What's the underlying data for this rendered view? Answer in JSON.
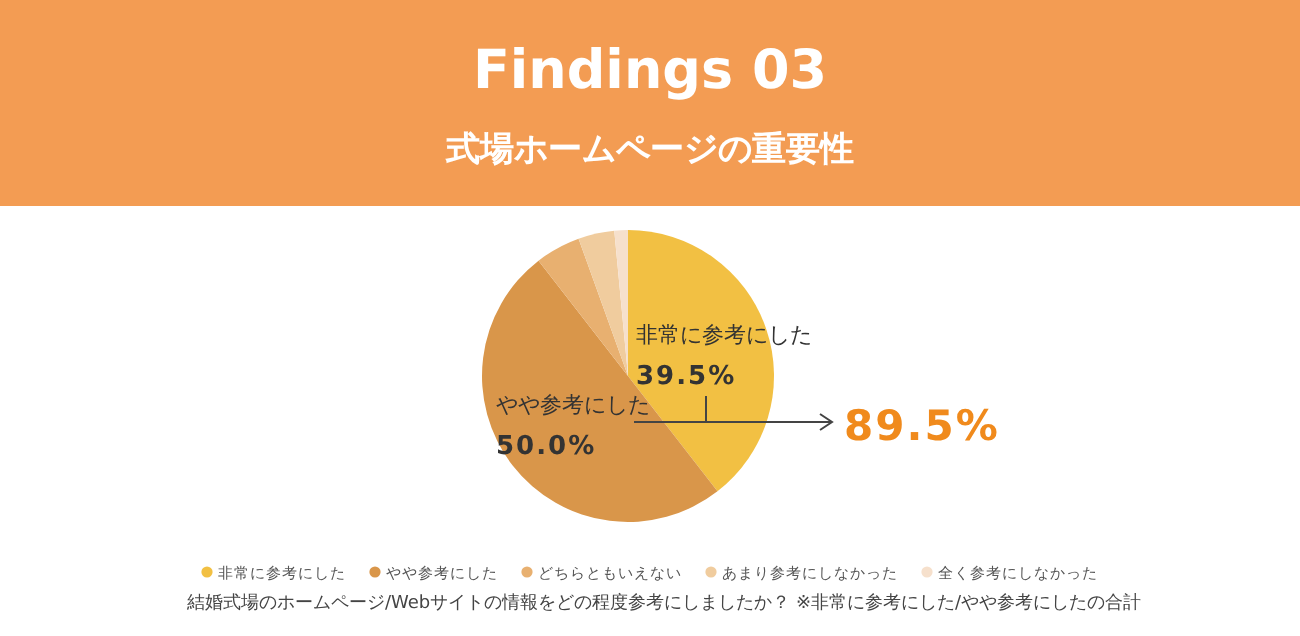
{
  "chart_data": {
    "type": "pie",
    "title": "Findings 03",
    "subtitle": "式場ホームページの重要性",
    "categories": [
      "非常に参考にした",
      "やや参考にした",
      "どちらともいえない",
      "あまり参考にしなかった",
      "全く参考にしなかった"
    ],
    "values": [
      39.5,
      50.0,
      5.0,
      4.0,
      1.5
    ],
    "colors": [
      "#f2c043",
      "#d9964a",
      "#e8b070",
      "#f0cc9e",
      "#f6e0cc"
    ],
    "value_labels": [
      "39.5%",
      "50.0%",
      null,
      null,
      null
    ],
    "legend": "bottom",
    "annotations": [
      "89.5%",
      "結婚式場のホームページ/Webサイトの情報をどの程度参考にしましたか？ ※非常に参考にした/やや参考にしたの合計"
    ]
  }
}
